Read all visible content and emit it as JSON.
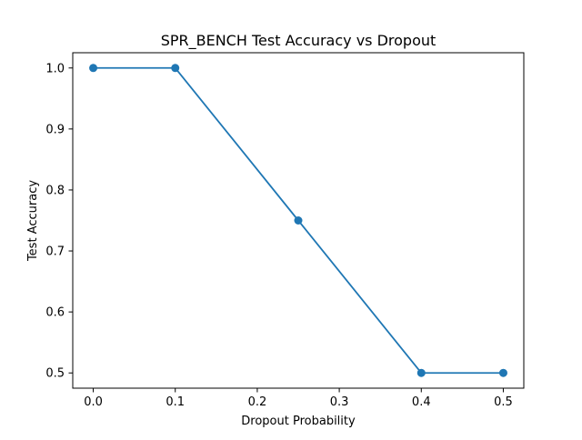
{
  "chart_data": {
    "type": "line",
    "title": "SPR_BENCH Test Accuracy vs Dropout",
    "xlabel": "Dropout Probability",
    "ylabel": "Test Accuracy",
    "x": [
      0.0,
      0.1,
      0.25,
      0.4,
      0.5
    ],
    "series": [
      {
        "name": "Test Accuracy",
        "values": [
          1.0,
          1.0,
          0.75,
          0.5,
          0.5
        ],
        "color": "#1f77b4",
        "marker": "circle"
      }
    ],
    "xlim": [
      -0.025,
      0.525
    ],
    "ylim": [
      0.475,
      1.025
    ],
    "xticks": [
      0.0,
      0.1,
      0.2,
      0.3,
      0.4,
      0.5
    ],
    "xtick_labels": [
      "0.0",
      "0.1",
      "0.2",
      "0.3",
      "0.4",
      "0.5"
    ],
    "yticks": [
      0.5,
      0.6,
      0.7,
      0.8,
      0.9,
      1.0
    ],
    "ytick_labels": [
      "0.5",
      "0.6",
      "0.7",
      "0.8",
      "0.9",
      "1.0"
    ],
    "grid": false,
    "legend": "none"
  }
}
